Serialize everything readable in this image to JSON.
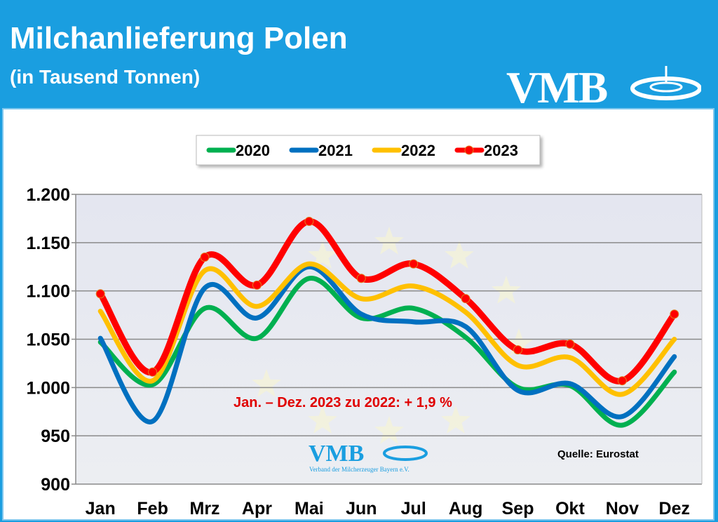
{
  "header": {
    "title": "Milchanlieferung Polen",
    "subtitle": "(in Tausend Tonnen)",
    "logo": "VMB"
  },
  "chart_data": {
    "type": "line",
    "title": "Milchanlieferung Polen",
    "subtitle": "(in Tausend Tonnen)",
    "categories": [
      "Jan",
      "Feb",
      "Mrz",
      "Apr",
      "Mai",
      "Jun",
      "Jul",
      "Aug",
      "Sep",
      "Okt",
      "Nov",
      "Dez"
    ],
    "ylim": [
      900,
      1200
    ],
    "yticks": [
      900,
      950,
      1000,
      1050,
      1100,
      1150,
      1200
    ],
    "ytick_labels": [
      "900",
      "950",
      "1.000",
      "1.050",
      "1.100",
      "1.150",
      "1.200"
    ],
    "grid": true,
    "legend_position": "top",
    "series": [
      {
        "name": "2020",
        "color": "#00b050",
        "markers": false,
        "values": [
          1047,
          1003,
          1082,
          1051,
          1113,
          1072,
          1082,
          1052,
          1000,
          1002,
          961,
          1016
        ]
      },
      {
        "name": "2021",
        "color": "#0070c0",
        "markers": false,
        "values": [
          1051,
          965,
          1103,
          1072,
          1125,
          1076,
          1068,
          1063,
          997,
          1004,
          970,
          1032
        ]
      },
      {
        "name": "2022",
        "color": "#ffc000",
        "markers": false,
        "values": [
          1079,
          1007,
          1121,
          1084,
          1128,
          1092,
          1105,
          1078,
          1023,
          1031,
          993,
          1050
        ]
      },
      {
        "name": "2023",
        "color": "#ff0000",
        "markers": true,
        "values": [
          1097,
          1016,
          1135,
          1106,
          1172,
          1113,
          1128,
          1092,
          1039,
          1045,
          1007,
          1076
        ]
      }
    ],
    "annotation": "Jan. – Dez. 2023 zu 2022: + 1,9 %",
    "source": "Quelle: Eurostat",
    "watermark": {
      "logo": "VMB",
      "text": "Verband der Milcherzeuger Bayern e.V."
    }
  }
}
